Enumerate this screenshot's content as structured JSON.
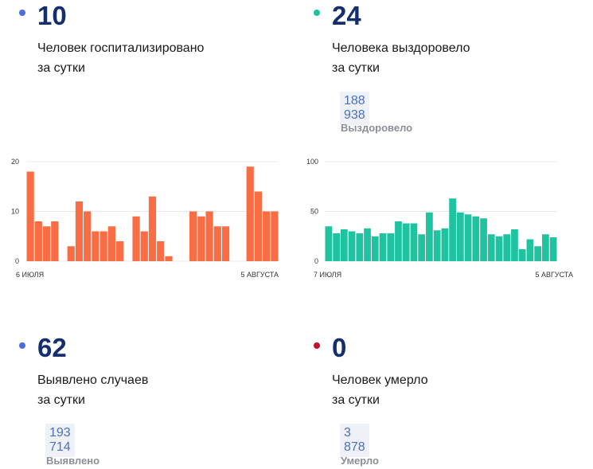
{
  "stats": {
    "hospitalized": {
      "number": "10",
      "line1": "Человек госпитализировано",
      "line2": "за сутки",
      "dot_color": "#4a6fdc"
    },
    "recovered": {
      "number": "24",
      "line1": "Человека выздоровело",
      "line2": "за сутки",
      "total": "188 938",
      "total_label": "Выздоровело",
      "dot_color": "#1fc3a0"
    },
    "cases": {
      "number": "62",
      "line1": "Выявлено случаев",
      "line2": "за сутки",
      "total": "193 714",
      "total_label": "Выявлено",
      "dot_color": "#4a6fdc"
    },
    "deaths": {
      "number": "0",
      "line1": "Человек умерло",
      "line2": "за сутки",
      "total": "3 878",
      "total_label": "Умерло",
      "dot_color": "#c0122c"
    }
  },
  "chart_data": [
    {
      "type": "bar",
      "color": "#f86d44",
      "x_start_label": "6 ИЮЛЯ",
      "x_end_label": "5 АВГУСТА",
      "yticks": [
        "0",
        "10",
        "20"
      ],
      "ylim": [
        0,
        20
      ],
      "values": [
        18,
        8,
        7,
        8,
        0,
        3,
        12,
        10,
        6,
        6,
        7,
        4,
        0,
        9,
        6,
        13,
        4,
        1,
        0,
        0,
        10,
        9,
        10,
        7,
        7,
        0,
        0,
        19,
        14,
        10,
        10
      ]
    },
    {
      "type": "bar",
      "color": "#1fc3a0",
      "x_start_label": "7 ИЮЛЯ",
      "x_end_label": "5 АВГУСТА",
      "yticks": [
        "0",
        "50",
        "100"
      ],
      "ylim": [
        0,
        100
      ],
      "values": [
        35,
        28,
        32,
        30,
        28,
        33,
        25,
        28,
        28,
        40,
        38,
        38,
        27,
        49,
        31,
        33,
        63,
        49,
        47,
        45,
        43,
        27,
        25,
        27,
        32,
        12,
        22,
        15,
        27,
        24
      ]
    }
  ]
}
